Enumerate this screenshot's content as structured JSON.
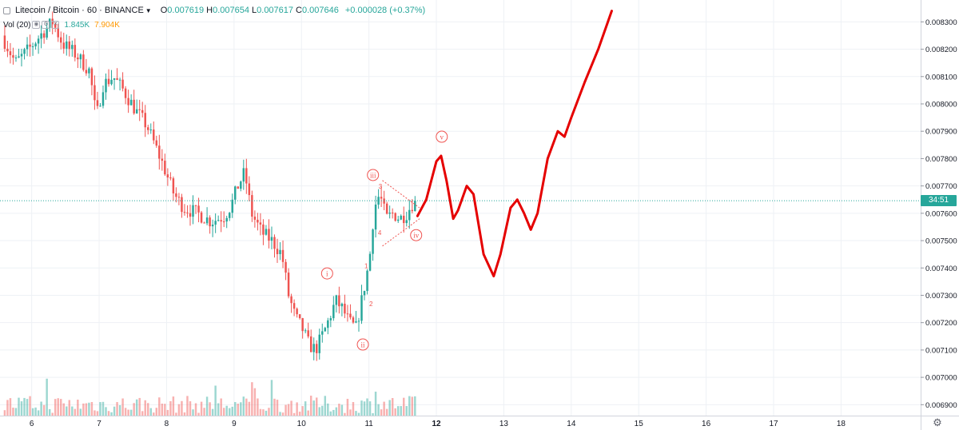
{
  "legend": {
    "symbol": "Litecoin / Bitcoin · 60 · BINANCE",
    "open_label": "O",
    "open": "0.007619",
    "high_label": "H",
    "high": "0.007654",
    "low_label": "L",
    "low": "0.007617",
    "close_label": "C",
    "close": "0.007646",
    "change": "+0.000028 (+0.37%)"
  },
  "volume_legend": {
    "label": "Vol (20)",
    "value1": "1.845K",
    "value2": "7.904K"
  },
  "countdown": "34:51",
  "annotations": {
    "wave_i": "i",
    "wave_ii": "ii",
    "wave_iii": "iii",
    "wave_iv": "iv",
    "wave_v": "v",
    "sub_1": "1",
    "sub_2": "2",
    "sub_3": "3",
    "sub_4": "4"
  },
  "colors": {
    "up": "#26a69a",
    "down": "#ef5350",
    "projection": "#e50000",
    "grid": "#eef1f5",
    "price_line": "#26a69a"
  },
  "chart_data": {
    "type": "candlestick",
    "symbol": "Litecoin / Bitcoin",
    "interval": "60",
    "exchange": "BINANCE",
    "x_ticks": [
      "6",
      "7",
      "8",
      "9",
      "10",
      "11",
      "12",
      "13",
      "14",
      "15",
      "16",
      "17",
      "18"
    ],
    "y_ticks": [
      "0.008300",
      "0.008200",
      "0.008100",
      "0.008000",
      "0.007900",
      "0.007800",
      "0.007700",
      "0.007600",
      "0.007500",
      "0.007400",
      "0.007300",
      "0.007200",
      "0.007100",
      "0.007000",
      "0.006900"
    ],
    "ylim": [
      0.00686,
      0.00838
    ],
    "last_price": 0.007646,
    "price_path": [
      [
        5.6,
        0.00825
      ],
      [
        5.8,
        0.00815
      ],
      [
        6.0,
        0.0082
      ],
      [
        6.2,
        0.00826
      ],
      [
        6.35,
        0.0083
      ],
      [
        6.5,
        0.00822
      ],
      [
        6.7,
        0.00818
      ],
      [
        6.9,
        0.00812
      ],
      [
        7.0,
        0.00795
      ],
      [
        7.1,
        0.00807
      ],
      [
        7.25,
        0.0081
      ],
      [
        7.4,
        0.00805
      ],
      [
        7.6,
        0.00797
      ],
      [
        7.75,
        0.00792
      ],
      [
        7.9,
        0.00783
      ],
      [
        8.0,
        0.00777
      ],
      [
        8.15,
        0.00767
      ],
      [
        8.3,
        0.00762
      ],
      [
        8.5,
        0.0076
      ],
      [
        8.7,
        0.00757
      ],
      [
        8.9,
        0.00759
      ],
      [
        9.0,
        0.00763
      ],
      [
        9.1,
        0.0077
      ],
      [
        9.2,
        0.00775
      ],
      [
        9.3,
        0.0076
      ],
      [
        9.45,
        0.00753
      ],
      [
        9.6,
        0.0075
      ],
      [
        9.75,
        0.00745
      ],
      [
        9.85,
        0.0073
      ],
      [
        9.95,
        0.00722
      ],
      [
        10.05,
        0.00718
      ],
      [
        10.15,
        0.00712
      ],
      [
        10.25,
        0.0071
      ],
      [
        10.4,
        0.00718
      ],
      [
        10.55,
        0.00728
      ],
      [
        10.65,
        0.00725
      ],
      [
        10.75,
        0.0072
      ],
      [
        10.85,
        0.00718
      ],
      [
        10.95,
        0.0073
      ],
      [
        11.05,
        0.00743
      ],
      [
        11.12,
        0.00762
      ],
      [
        11.2,
        0.00767
      ],
      [
        11.3,
        0.00758
      ],
      [
        11.4,
        0.0076
      ],
      [
        11.5,
        0.00758
      ],
      [
        11.6,
        0.0076
      ],
      [
        11.72,
        0.00765
      ]
    ],
    "volume_scale": [
      0,
      2.75e-05
    ],
    "projection_path": [
      [
        11.72,
        0.00759
      ],
      [
        11.85,
        0.00765
      ],
      [
        12.0,
        0.00779
      ],
      [
        12.07,
        0.00781
      ],
      [
        12.15,
        0.00772
      ],
      [
        12.25,
        0.00758
      ],
      [
        12.32,
        0.00761
      ],
      [
        12.45,
        0.0077
      ],
      [
        12.55,
        0.00767
      ],
      [
        12.7,
        0.00745
      ],
      [
        12.85,
        0.00737
      ],
      [
        12.95,
        0.00745
      ],
      [
        13.1,
        0.00762
      ],
      [
        13.2,
        0.00765
      ],
      [
        13.3,
        0.0076
      ],
      [
        13.4,
        0.00754
      ],
      [
        13.5,
        0.0076
      ],
      [
        13.65,
        0.0078
      ],
      [
        13.8,
        0.0079
      ],
      [
        13.9,
        0.00788
      ],
      [
        14.0,
        0.00795
      ],
      [
        14.2,
        0.00808
      ],
      [
        14.4,
        0.0082
      ],
      [
        14.6,
        0.00834
      ]
    ]
  }
}
